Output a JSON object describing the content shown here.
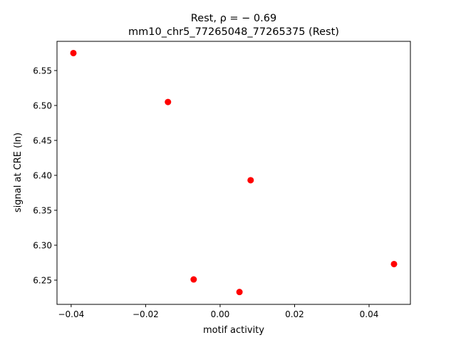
{
  "chart_data": {
    "type": "scatter",
    "title_line1": "Rest, ρ = − 0.69",
    "title_line2": "mm10_chr5_77265048_77265375 (Rest)",
    "xlabel": "motif activity",
    "ylabel": "signal at CRE (ln)",
    "xlim": [
      -0.0438,
      0.0511
    ],
    "ylim": [
      6.2153,
      6.5918
    ],
    "xticks": [
      -0.04,
      -0.02,
      0.0,
      0.02,
      0.04
    ],
    "xtick_labels": [
      "−0.04",
      "−0.02",
      "0.00",
      "0.02",
      "0.04"
    ],
    "yticks": [
      6.25,
      6.3,
      6.35,
      6.4,
      6.45,
      6.5,
      6.55
    ],
    "ytick_labels": [
      "6.25",
      "6.30",
      "6.35",
      "6.40",
      "6.45",
      "6.50",
      "6.55"
    ],
    "grid": false,
    "color": "#ff0000",
    "points": [
      {
        "x": -0.0394,
        "y": 6.575
      },
      {
        "x": -0.014,
        "y": 6.505
      },
      {
        "x": 0.0082,
        "y": 6.393
      },
      {
        "x": -0.0071,
        "y": 6.251
      },
      {
        "x": 0.0052,
        "y": 6.233
      },
      {
        "x": 0.0467,
        "y": 6.273
      }
    ]
  }
}
